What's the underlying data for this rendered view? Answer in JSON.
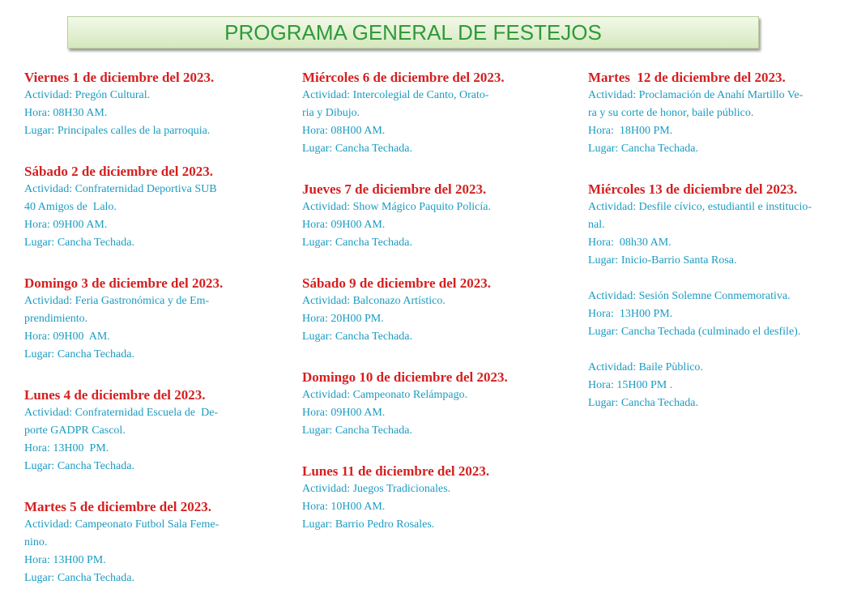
{
  "title": "PROGRAMA GENERAL DE FESTEJOS",
  "columns": [
    [
      {
        "date": "Viernes 1 de diciembre del 2023.",
        "groups": [
          [
            "Actividad: Pregón Cultural.",
            "Hora: 08H30 AM.",
            "Lugar: Principales calles de la parroquia."
          ]
        ]
      },
      {
        "date": "Sábado 2 de diciembre del 2023.",
        "groups": [
          [
            "Actividad: Confraternidad Deportiva SUB",
            "40 Amigos de  Lalo.",
            "Hora: 09H00 AM.",
            "Lugar: Cancha Techada."
          ]
        ]
      },
      {
        "date": "Domingo 3 de diciembre del 2023.",
        "groups": [
          [
            "Actividad: Feria Gastronómica y de Em-",
            "prendimiento.",
            "Hora: 09H00  AM.",
            "Lugar: Cancha Techada."
          ]
        ]
      },
      {
        "date": "Lunes 4 de diciembre del 2023.",
        "groups": [
          [
            "Actividad: Confraternidad Escuela de  De-",
            "porte GADPR Cascol.",
            "Hora: 13H00  PM.",
            "Lugar: Cancha Techada."
          ]
        ]
      },
      {
        "date": "Martes 5 de diciembre del 2023.",
        "groups": [
          [
            "Actividad: Campeonato Futbol Sala Feme-",
            "nino.",
            "Hora: 13H00 PM.",
            "Lugar: Cancha Techada."
          ]
        ]
      }
    ],
    [
      {
        "date": "Miércoles 6 de diciembre del 2023.",
        "groups": [
          [
            "Actividad: Intercolegial de Canto, Orato-",
            "ria y Dibujo.",
            "Hora: 08H00 AM.",
            "Lugar: Cancha Techada."
          ]
        ]
      },
      {
        "date": "Jueves 7 de diciembre del 2023.",
        "groups": [
          [
            "Actividad: Show Mágico Paquito Policía.",
            "Hora: 09H00 AM.",
            "Lugar: Cancha Techada."
          ]
        ]
      },
      {
        "date": "Sábado 9 de diciembre del 2023.",
        "groups": [
          [
            "Actividad: Balconazo Artístico.",
            "Hora: 20H00 PM.",
            "Lugar: Cancha Techada."
          ]
        ]
      },
      {
        "date": "Domingo 10 de diciembre del 2023.",
        "groups": [
          [
            "Actividad: Campeonato Relámpago.",
            "Hora: 09H00 AM.",
            "Lugar: Cancha Techada."
          ]
        ]
      },
      {
        "date": "Lunes 11 de diciembre del 2023.",
        "groups": [
          [
            "Actividad: Juegos Tradicionales.",
            "Hora: 10H00 AM.",
            "Lugar: Barrio Pedro Rosales."
          ]
        ]
      }
    ],
    [
      {
        "date": "Martes  12 de diciembre del 2023.",
        "groups": [
          [
            "Actividad: Proclamación de Anahí Martillo Ve-",
            "ra y su corte de honor, baile público.",
            "Hora:  18H00 PM.",
            "Lugar: Cancha Techada."
          ]
        ]
      },
      {
        "date": "Miércoles 13 de diciembre del 2023.",
        "groups": [
          [
            "Actividad: Desfile cívico, estudiantil e institucio-",
            "nal.",
            "Hora:  08h30 AM.",
            "Lugar: Inicio-Barrio Santa Rosa."
          ],
          [
            "Actividad: Sesión Solemne Conmemorativa.",
            "Hora:  13H00 PM.",
            "Lugar: Cancha Techada (culminado el desfile)."
          ],
          [
            "Actividad: Baile Pùblico.",
            "Hora: 15H00 PM .",
            "Lugar: Cancha Techada."
          ]
        ]
      }
    ]
  ]
}
